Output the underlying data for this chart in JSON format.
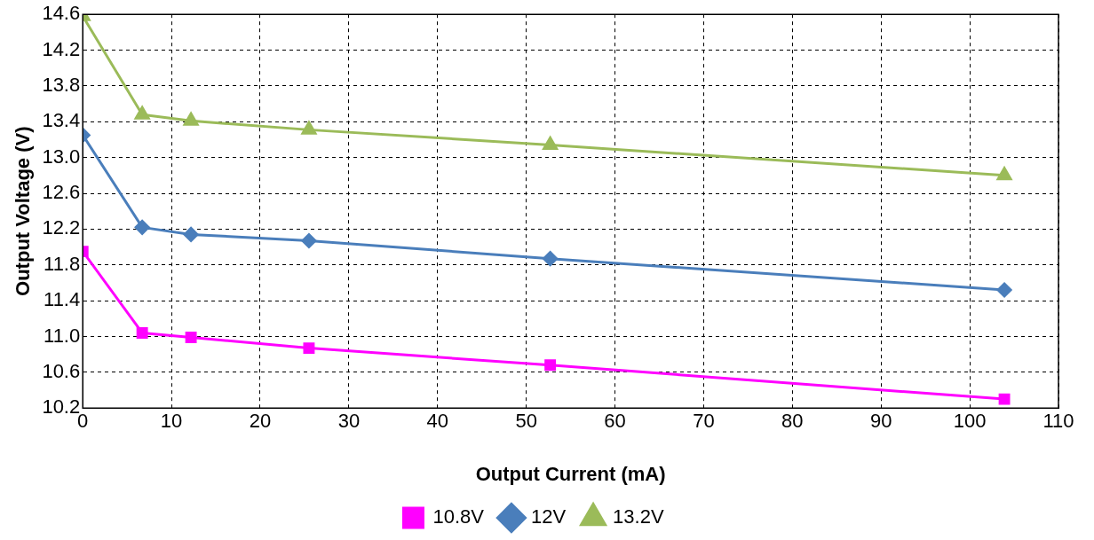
{
  "chart_data": {
    "type": "line",
    "xlabel": "Output Current (mA)",
    "ylabel": "Output Voltage (V)",
    "xlim": [
      0,
      110
    ],
    "xticks": [
      0,
      10,
      20,
      30,
      40,
      50,
      60,
      70,
      80,
      90,
      100,
      110
    ],
    "ylim": [
      10.2,
      14.6
    ],
    "yticks": [
      10.2,
      10.6,
      {
        "value": 11,
        "label": "11.0"
      },
      11.4,
      11.8,
      12.2,
      12.6,
      {
        "value": 13,
        "label": "13.0"
      },
      13.4,
      13.8,
      14.2,
      14.6
    ],
    "grid": true,
    "legend": "bottom",
    "line_style": "solid",
    "series": [
      {
        "name": "10.8V",
        "color": "#ff00ff",
        "marker": "square",
        "x": [
          0,
          6.7,
          12.2,
          25.5,
          52.7,
          103.9
        ],
        "values": [
          11.95,
          11.04,
          10.99,
          10.87,
          10.68,
          10.3
        ]
      },
      {
        "name": "12V",
        "color": "#4a7ebb",
        "marker": "diamond",
        "x": [
          0,
          6.7,
          12.2,
          25.5,
          52.7,
          103.9
        ],
        "values": [
          13.25,
          12.22,
          12.14,
          12.07,
          11.87,
          11.52
        ]
      },
      {
        "name": "13.2V",
        "color": "#9bbb59",
        "marker": "triangle",
        "x": [
          0,
          6.7,
          12.2,
          25.5,
          52.7,
          103.9
        ],
        "values": [
          14.58,
          13.48,
          13.41,
          13.31,
          13.14,
          12.8
        ]
      }
    ]
  }
}
